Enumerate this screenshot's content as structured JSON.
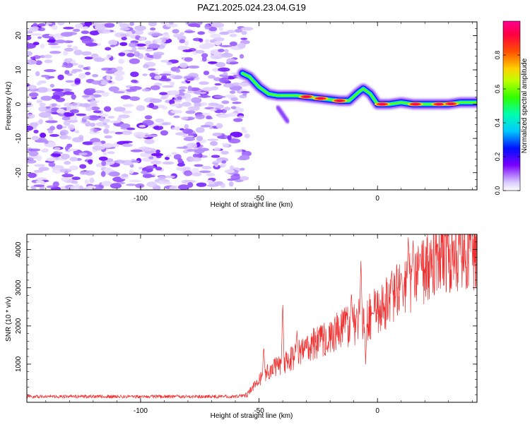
{
  "title": "PAZ1.2025.024.23.04.G19",
  "chart_data": [
    {
      "type": "heatmap",
      "xlabel": "Height of straight line (km)",
      "ylabel": "Frequency (Hz)",
      "xlim": [
        -148,
        42
      ],
      "ylim": [
        -25,
        24
      ],
      "x_ticks": [
        -100,
        -50,
        0
      ],
      "y_ticks": [
        -20,
        -10,
        0,
        10,
        20
      ],
      "colorbar": {
        "label": "Normalized spectral amplitude",
        "range": [
          0,
          1
        ],
        "ticks": [
          0.0,
          0.2,
          0.4,
          0.6,
          0.8
        ]
      },
      "noise_region_x": [
        -148,
        -55
      ],
      "ridge": [
        [
          -57,
          9
        ],
        [
          -54,
          8
        ],
        [
          -50,
          5
        ],
        [
          -46,
          3
        ],
        [
          -42,
          2.5
        ],
        [
          -38,
          2.5
        ],
        [
          -34,
          2.5
        ],
        [
          -28,
          2
        ],
        [
          -22,
          1.5
        ],
        [
          -16,
          1
        ],
        [
          -12,
          1
        ],
        [
          -8,
          3.5
        ],
        [
          -6,
          4.5
        ],
        [
          -3,
          3
        ],
        [
          0,
          0
        ],
        [
          5,
          0
        ],
        [
          10,
          0.5
        ],
        [
          15,
          0
        ],
        [
          20,
          0
        ],
        [
          25,
          0
        ],
        [
          30,
          0
        ],
        [
          35,
          0.5
        ],
        [
          42,
          0.5
        ]
      ],
      "ridge_peaks_x": [
        -30,
        -24,
        -16,
        2,
        16,
        26,
        31
      ]
    },
    {
      "type": "line",
      "xlabel": "Height of straight line (km)",
      "ylabel": "SNR (10 * v/v)",
      "xlim": [
        -148,
        42
      ],
      "ylim": [
        0,
        4400
      ],
      "x_ticks": [
        -100,
        -50,
        0
      ],
      "y_ticks": [
        1000,
        2000,
        3000,
        4000
      ],
      "color": "#f03030",
      "trend": [
        [
          -148,
          150
        ],
        [
          -60,
          150
        ],
        [
          -55,
          200
        ],
        [
          -52,
          450
        ],
        [
          -48,
          700
        ],
        [
          -44,
          900
        ],
        [
          -40,
          1000
        ],
        [
          -35,
          1200
        ],
        [
          -30,
          1400
        ],
        [
          -25,
          1600
        ],
        [
          -20,
          1750
        ],
        [
          -15,
          1900
        ],
        [
          -10,
          2050
        ],
        [
          -5,
          2200
        ],
        [
          0,
          2400
        ],
        [
          5,
          2650
        ],
        [
          10,
          2950
        ],
        [
          15,
          3250
        ],
        [
          20,
          3550
        ],
        [
          25,
          3750
        ],
        [
          30,
          3850
        ],
        [
          35,
          3950
        ],
        [
          42,
          4050
        ]
      ],
      "spikes": [
        [
          -48,
          1500
        ],
        [
          -40,
          2650
        ],
        [
          -34,
          1900
        ],
        [
          -11,
          2900
        ],
        [
          -7,
          3750
        ],
        [
          -5,
          1000
        ],
        [
          -2,
          2350
        ],
        [
          6,
          3500
        ],
        [
          10,
          3450
        ],
        [
          13,
          4350
        ],
        [
          15,
          4250
        ],
        [
          18,
          3950
        ]
      ]
    }
  ]
}
